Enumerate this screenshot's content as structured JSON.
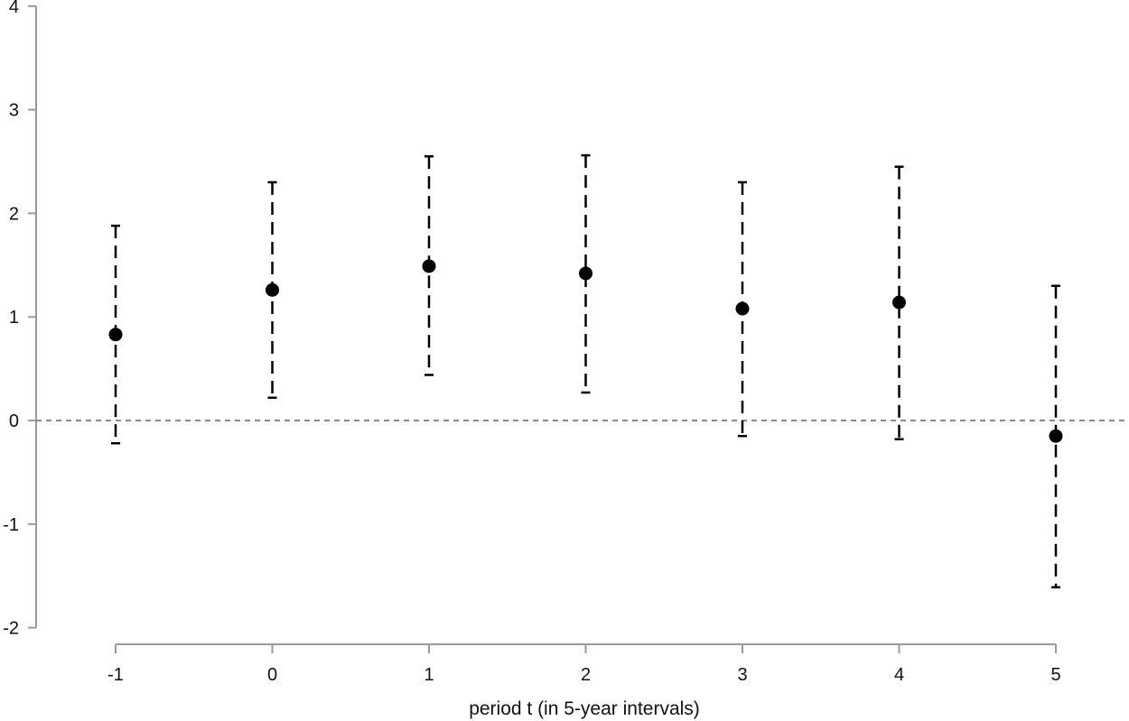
{
  "chart_data": {
    "type": "scatter",
    "title": "",
    "xlabel": "period t (in 5-year intervals)",
    "ylabel": "",
    "x_ticks": [
      "-1",
      "0",
      "1",
      "2",
      "3",
      "4",
      "5"
    ],
    "y_ticks": [
      "-2",
      "-1",
      "0",
      "1",
      "2",
      "3",
      "4"
    ],
    "ylim": [
      -2,
      4
    ],
    "xlim": [
      -1,
      5
    ],
    "grid": false,
    "reference_line": {
      "y": 0,
      "style": "dashed",
      "color": "#8a8a8a"
    },
    "series": [
      {
        "color": "#000000",
        "error_bar_style": "dashed",
        "points": [
          {
            "x": -1,
            "y": 0.83,
            "lower": -0.22,
            "upper": 1.88
          },
          {
            "x": 0,
            "y": 1.26,
            "lower": 0.22,
            "upper": 2.3
          },
          {
            "x": 1,
            "y": 1.49,
            "lower": 0.44,
            "upper": 2.55
          },
          {
            "x": 2,
            "y": 1.42,
            "lower": 0.27,
            "upper": 2.56
          },
          {
            "x": 3,
            "y": 1.08,
            "lower": -0.15,
            "upper": 2.3
          },
          {
            "x": 4,
            "y": 1.14,
            "lower": -0.18,
            "upper": 2.45
          },
          {
            "x": 5,
            "y": -0.15,
            "lower": -1.61,
            "upper": 1.3
          }
        ]
      }
    ]
  }
}
